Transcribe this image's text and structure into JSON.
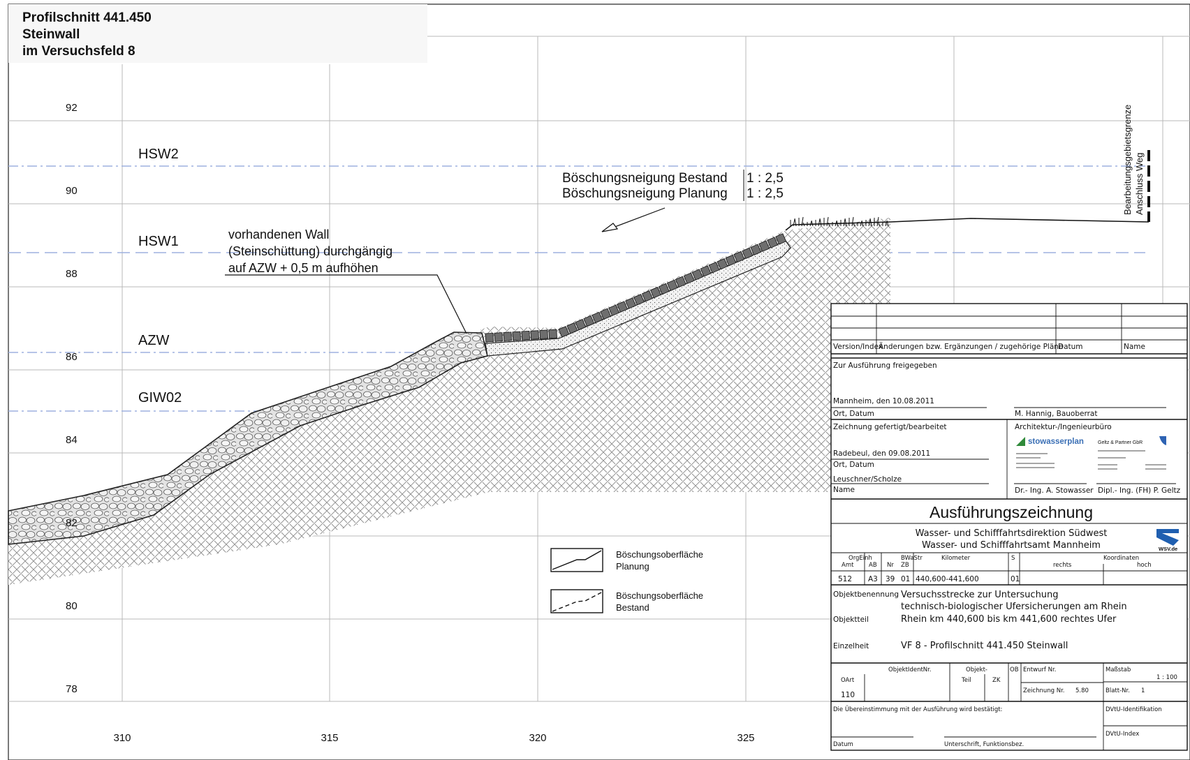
{
  "title": {
    "line1": "Profilschnitt 441.450",
    "line2": "Steinwall",
    "line3": "im Versuchsfeld 8"
  },
  "axes": {
    "y_ticks": [
      "92",
      "90",
      "88",
      "86",
      "84",
      "82",
      "80",
      "78"
    ],
    "x_ticks": [
      "310",
      "315",
      "320",
      "325"
    ]
  },
  "water_levels": {
    "hsw2": "HSW2",
    "hsw1": "HSW1",
    "azw": "AZW",
    "giw02": "GIW02"
  },
  "annotations": {
    "wall_note": [
      "vorhandenen Wall",
      "(Steinschüttung) durchgängig",
      "auf AZW + 0,5 m aufhöhen"
    ],
    "slope_bestand_label": "Böschungsneigung Bestand",
    "slope_bestand_value": "1 : 2,5",
    "slope_planung_label": "Böschungsneigung Planung",
    "slope_planung_value": "1 : 2,5",
    "boundary_1": "Bearbeitungsgebietsgrenze",
    "boundary_2": "Anschluss Weg"
  },
  "legend": {
    "planung_1": "Böschungsoberfläche",
    "planung_2": "Planung",
    "bestand_1": "Böschungsoberfläche",
    "bestand_2": "Bestand"
  },
  "title_block": {
    "revision_headers": {
      "version": "Version/Index",
      "changes": "Änderungen bzw. Ergänzungen / zugehörige Pläne",
      "date": "Datum",
      "name": "Name"
    },
    "release": {
      "label": "Zur Ausführung freigegeben",
      "place_date": "Mannheim, den 10.08.2011",
      "place_date_label": "Ort, Datum",
      "signer": "M. Hannig, Bauoberrat"
    },
    "drawn": {
      "label": "Zeichnung gefertigt/bearbeitet",
      "place_date": "Radebeul, den 09.08.2011",
      "place_date_label": "Ort, Datum",
      "names": "Leuschner/Scholze",
      "name_label": "Name"
    },
    "architect": {
      "label": "Architektur-/Ingenieurbüro",
      "logo1": "stowasserplan",
      "logo2": "Geltz & Partner GbR",
      "signer1": "Dr.- Ing. A. Stowasser",
      "signer2": "Dipl.- Ing. (FH) P. Geltz"
    },
    "drawing_type": "Ausführungszeichnung",
    "authority1": "Wasser- und Schifffahrtsdirektion Südwest",
    "authority2": "Wasser- und Schifffahrtsamt Mannheim",
    "wsv": "WSV.de",
    "codes": {
      "orgeinh": "OrgEinh",
      "amt": "Amt",
      "ab": "AB",
      "bwastr": "BWaStr",
      "nr": "Nr",
      "zb": "ZB",
      "kilometer": "Kilometer",
      "s": "S",
      "koordinaten": "Koordinaten",
      "rechts": "rechts",
      "hoch": "hoch",
      "amt_val": "512",
      "ab_val": "A3",
      "nr_val": "39",
      "zb_val": "01",
      "km_val": "440,600-441,600",
      "s_val": "01"
    },
    "object_label": "Objektbenennung",
    "object_line1": "Versuchsstrecke zur Untersuchung",
    "object_line2": "technisch-biologischer Ufersicherungen am Rhein",
    "part_label": "Objektteil",
    "part_value": "Rhein km 440,600 bis km 441,600 rechtes Ufer",
    "detail_label": "Einzelheit",
    "detail_value": "VF 8 - Profilschnitt 441.450 Steinwall",
    "ident": {
      "objektident": "ObjektIdentNr.",
      "objekt": "Objekt-",
      "teil": "Teil",
      "zk": "ZK",
      "ob": "OB",
      "entwurf": "Entwurf Nr.",
      "oart": "OArt",
      "oart_val": "110",
      "zeichnung": "Zeichnung Nr.",
      "zeichnung_val": "5.80",
      "massstab": "Maßstab",
      "massstab_val": "1 : 100",
      "blatt": "Blatt-Nr.",
      "blatt_val": "1"
    },
    "confirm": "Die Übereinstimmung mit der Ausführung wird bestätigt:",
    "confirm_date": "Datum",
    "confirm_sign": "Unterschrift, Funktionsbez.",
    "dvtu_id": "DVtU-Identifikation",
    "dvtu_index": "DVtU-Index"
  },
  "colors": {
    "water_line": "#9db1df",
    "grid": "#b8b8b8",
    "line": "#111111",
    "stone_fill": "#d9d9d9",
    "block_fill": "#6e6e6e"
  }
}
